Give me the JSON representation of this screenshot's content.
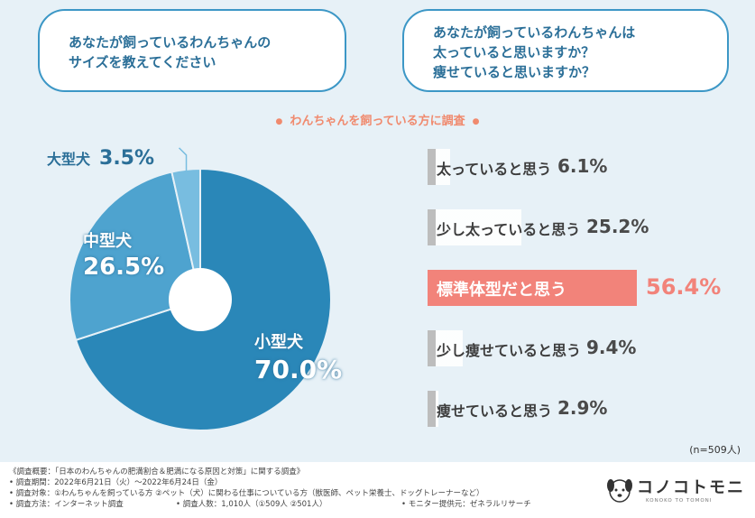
{
  "questions": {
    "left": [
      "あなたが飼っているわんちゃんの",
      "サイズを教えてください"
    ],
    "right": [
      "あなたが飼っているわんちゃんは",
      "太っていると思いますか？",
      "痩せていると思いますか？"
    ]
  },
  "survey_title": "わんちゃんを飼っている方に調査",
  "sample_size": "(n=509人)",
  "colors": {
    "pie_small": "#2a87b8",
    "pie_medium": "#4ea3cf",
    "pie_large": "#78bde0",
    "bar_gray": "#bdbdbd",
    "bar_highlight": "#f2837a",
    "title_accent": "#f08a6e"
  },
  "chart_data": [
    {
      "type": "pie",
      "slices": [
        {
          "label": "大型犬",
          "value": 3.5,
          "value_text": "3.5%"
        },
        {
          "label": "中型犬",
          "value": 26.5,
          "value_text": "26.5%"
        },
        {
          "label": "小型犬",
          "value": 70.0,
          "value_text": "70.0%"
        }
      ],
      "donut": true
    },
    {
      "type": "bar",
      "orientation": "horizontal",
      "categories": [
        "太っていると思う",
        "少し太っていると思う",
        "標準体型だと思う",
        "少し痩せていると思う",
        "痩せていると思う"
      ],
      "values": [
        6.1,
        25.2,
        56.4,
        9.4,
        2.9
      ],
      "value_texts": [
        "6.1%",
        "25.2%",
        "56.4%",
        "9.4%",
        "2.9%"
      ],
      "highlight": "標準体型だと思う"
    }
  ],
  "footer": {
    "summary": "《調査概要：「日本のわんちゃんの肥満割合＆肥満になる原因と対策」に関する調査》",
    "period": "• 調査期間：2022年6月21日（火）〜2022年6月24日（金）",
    "target": "• 調査対象：①わんちゃんを飼っている方 ②ペット（犬）に関わる仕事についている方（獣医師、ペット栄養士、ドッグトレーナーなど）",
    "method": "• 調査方法：インターネット調査",
    "respondents": "• 調査人数：1,010人（①509人 ②501人）",
    "provider": "• モニター提供元：ゼネラルリサーチ"
  },
  "logo": {
    "text": "コノコトモニ",
    "sub": "KONOKO TO TOMONI"
  }
}
